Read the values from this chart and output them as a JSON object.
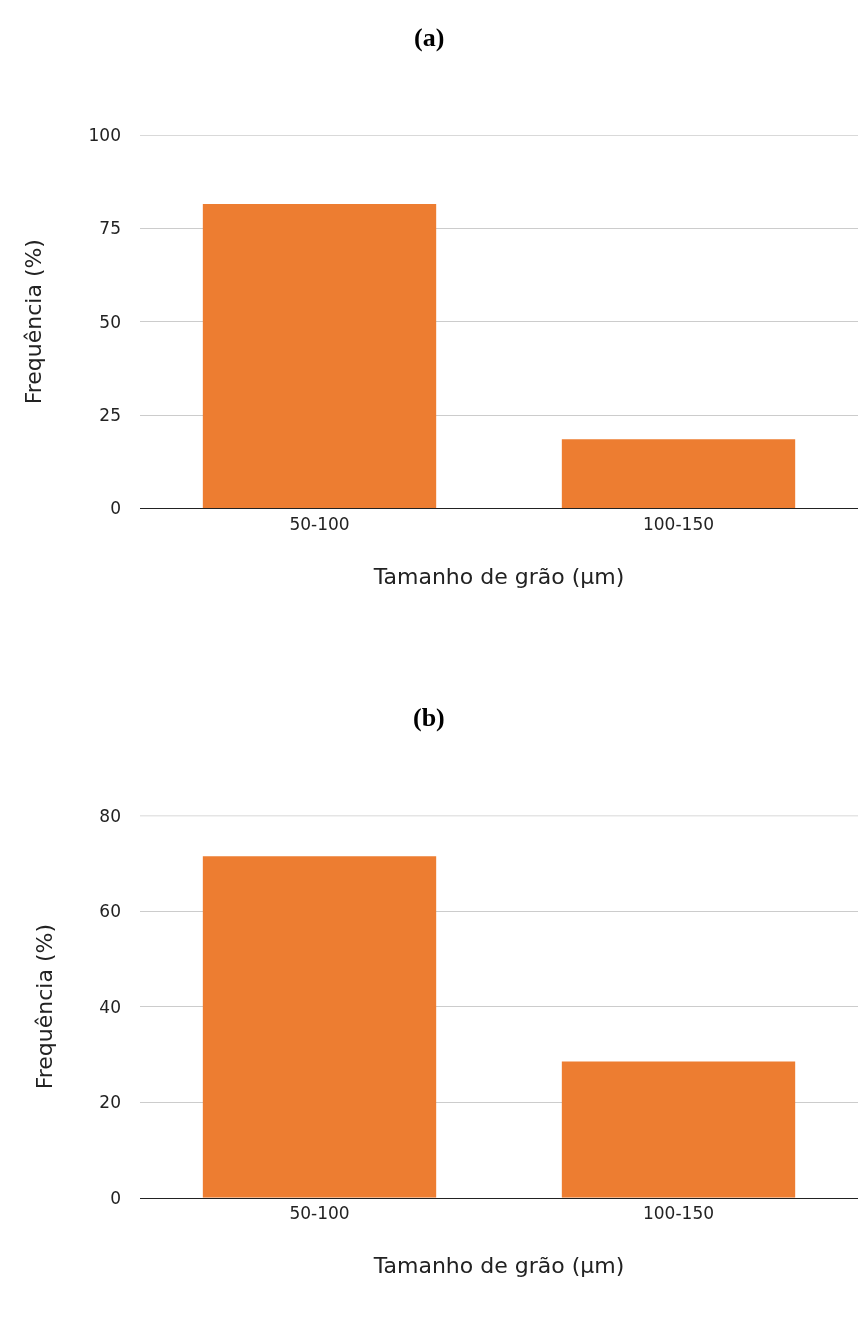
{
  "chart_data": [
    {
      "type": "bar",
      "title": "(a)",
      "xlabel": "Tamanho de grão (µm)",
      "ylabel": "Frequência (%)",
      "categories": [
        "50-100",
        "100-150"
      ],
      "values": [
        81.5,
        18.5
      ],
      "color": "#ed7d31",
      "ylim": [
        0,
        100
      ],
      "yticks": [
        0,
        25,
        50,
        75,
        100
      ],
      "grid": "y"
    },
    {
      "type": "bar",
      "title": "(b)",
      "xlabel": "Tamanho de grão (µm)",
      "ylabel": "Frequência (%)",
      "categories": [
        "50-100",
        "100-150"
      ],
      "values": [
        71.5,
        28.5
      ],
      "color": "#ed7d31",
      "ylim": [
        0,
        80
      ],
      "yticks": [
        0,
        20,
        40,
        60,
        80
      ],
      "grid": "y"
    }
  ]
}
